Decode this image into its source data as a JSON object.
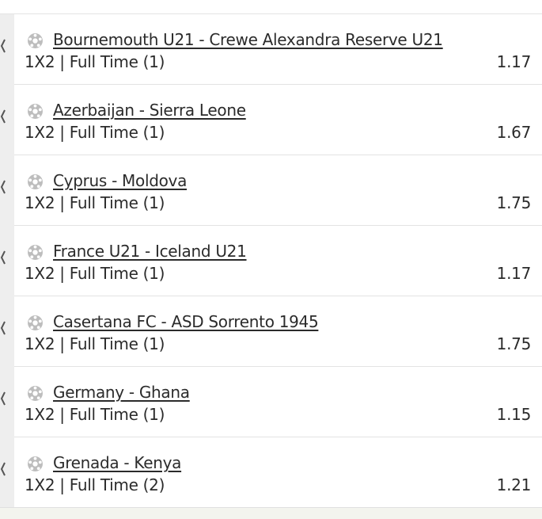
{
  "bets": [
    {
      "match": "Bournemouth U21 - Crewe Alexandra Reserve U21",
      "market": "1X2 | Full Time (1)",
      "odds": "1.17"
    },
    {
      "match": "Azerbaijan - Sierra Leone",
      "market": "1X2 | Full Time (1)",
      "odds": "1.67"
    },
    {
      "match": "Cyprus - Moldova",
      "market": "1X2 | Full Time (1)",
      "odds": "1.75"
    },
    {
      "match": "France U21 - Iceland U21",
      "market": "1X2 | Full Time (1)",
      "odds": "1.17"
    },
    {
      "match": "Casertana FC - ASD Sorrento 1945",
      "market": "1X2 | Full Time (1)",
      "odds": "1.75"
    },
    {
      "match": "Germany - Ghana",
      "market": "1X2 | Full Time (1)",
      "odds": "1.15"
    },
    {
      "match": "Grenada - Kenya",
      "market": "1X2 | Full Time (2)",
      "odds": "1.21"
    }
  ]
}
